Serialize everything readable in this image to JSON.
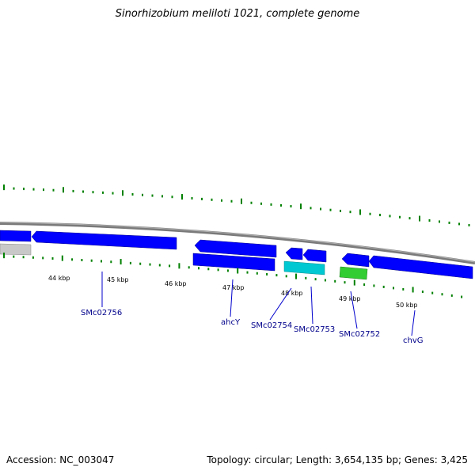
{
  "title": "Sinorhizobium meliloti 1021, complete genome",
  "footer": {
    "accession": "Accession: NC_003047",
    "topology": "Topology: circular; Length: 3,654,135 bp; Genes: 3,425"
  },
  "colors": {
    "backbone": "#808080",
    "gene_forward": "#0000ff",
    "gene_other": "#c0c0c0",
    "gene_cyan": "#00c8d2",
    "gene_green": "#32cd32",
    "tick_marks": "#008000",
    "gene_label": "#00008b"
  },
  "scale_ticks": [
    "44 kbp",
    "45 kbp",
    "46 kbp",
    "47 kbp",
    "48 kbp",
    "49 kbp",
    "50 kbp"
  ],
  "gene_labels": [
    "SMc02756",
    "ahcY",
    "SMc02754",
    "SMc02753",
    "SMc02752",
    "chvG"
  ]
}
